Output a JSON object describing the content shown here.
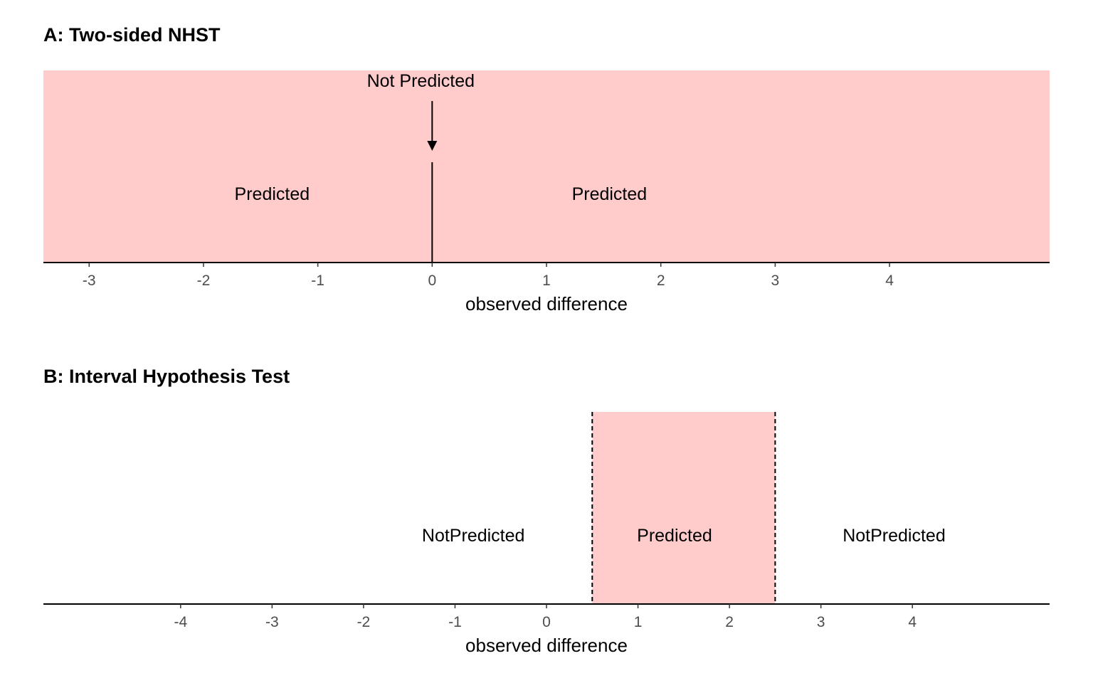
{
  "colors": {
    "predicted_fill": "#ffcccb",
    "axis": "#000000",
    "tick_text": "#4d4d4d"
  },
  "chart_data": [
    {
      "type": "interval",
      "title": "A: Two-sided NHST",
      "xlabel": "observed difference",
      "xlim": [
        -3.4,
        5.4
      ],
      "ticks": [
        -3,
        -2,
        -1,
        0,
        1,
        2,
        3,
        4
      ],
      "tick_labels": [
        "-3",
        "-2",
        "-1",
        "0",
        "1",
        "2",
        "3",
        "4"
      ],
      "shaded_regions": [
        {
          "from": -3.4,
          "to": 5.4,
          "label": "predicted"
        }
      ],
      "point_lines": [
        {
          "x": 0
        }
      ],
      "region_labels": [
        {
          "text": "Predicted",
          "x": -1.4
        },
        {
          "text": "Predicted",
          "x": 1.55
        }
      ],
      "annotations": [
        {
          "text": "Not Predicted",
          "x": 0,
          "arrow_to": 0
        }
      ]
    },
    {
      "type": "interval",
      "title": "B: Interval Hypothesis Test",
      "xlabel": "observed difference",
      "xlim": [
        -5.5,
        5.5
      ],
      "ticks": [
        -4,
        -3,
        -2,
        -1,
        0,
        1,
        2,
        3,
        4
      ],
      "tick_labels": [
        "-4",
        "-3",
        "-2",
        "-1",
        "0",
        "1",
        "2",
        "3",
        "4"
      ],
      "shaded_regions": [
        {
          "from": 0.5,
          "to": 2.5,
          "label": "predicted"
        }
      ],
      "boundary_lines": [
        {
          "x": 0.5,
          "style": "dashed"
        },
        {
          "x": 2.5,
          "style": "dashed"
        }
      ],
      "region_labels": [
        {
          "text": "NotPredicted",
          "x": -0.8
        },
        {
          "text": "Predicted",
          "x": 1.4
        },
        {
          "text": "NotPredicted",
          "x": 3.8
        }
      ]
    }
  ]
}
